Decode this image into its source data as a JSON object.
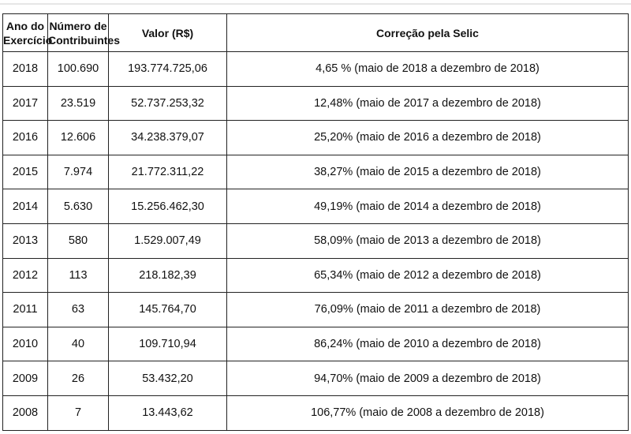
{
  "table": {
    "headers": [
      [
        "Ano do",
        "Exercício"
      ],
      [
        "Número de",
        "Contribuintes"
      ],
      [
        "Valor (R$)"
      ],
      [
        "Correção pela Selic"
      ]
    ],
    "rows": [
      [
        "2018",
        "100.690",
        "193.774.725,06",
        "4,65 % (maio de 2018 a dezembro de 2018)"
      ],
      [
        "2017",
        "23.519",
        "52.737.253,32",
        "12,48% (maio de 2017 a dezembro de 2018)"
      ],
      [
        "2016",
        "12.606",
        "34.238.379,07",
        "25,20% (maio de 2016 a dezembro de 2018)"
      ],
      [
        "2015",
        "7.974",
        "21.772.311,22",
        "38,27% (maio de 2015 a dezembro de 2018)"
      ],
      [
        "2014",
        "5.630",
        "15.256.462,30",
        "49,19% (maio de 2014 a dezembro de 2018)"
      ],
      [
        "2013",
        "580",
        "1.529.007,49",
        "58,09% (maio de 2013 a dezembro de 2018)"
      ],
      [
        "2012",
        "113",
        "218.182,39",
        "65,34% (maio de 2012 a  dezembro de 2018)"
      ],
      [
        "2011",
        "63",
        "145.764,70",
        "76,09% (maio de 2011 a dezembro de 2018)"
      ],
      [
        "2010",
        "40",
        "109.710,94",
        "86,24% (maio de 2010 a  dezembro de 2018)"
      ],
      [
        "2009",
        "26",
        "53.432,20",
        "94,70% (maio de 2009 a dezembro de 2018)"
      ],
      [
        "2008",
        "7",
        "13.443,62",
        "106,77% (maio de 2008 a dezembro de 2018)"
      ]
    ]
  }
}
